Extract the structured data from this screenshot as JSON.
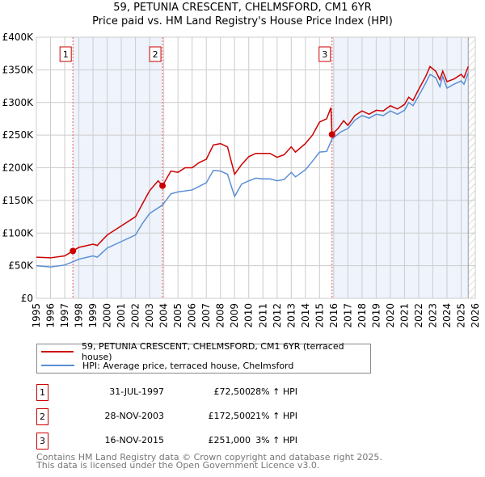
{
  "chart_data": {
    "type": "line",
    "title": "59, PETUNIA CRESCENT, CHELMSFORD, CM1 6YR",
    "subtitle": "Price paid vs. HM Land Registry's House Price Index (HPI)",
    "xlim": [
      1995,
      2026
    ],
    "ylim": [
      0,
      400000
    ],
    "yticks": [
      "£0",
      "£50K",
      "£100K",
      "£150K",
      "£200K",
      "£250K",
      "£300K",
      "£350K",
      "£400K"
    ],
    "xticks": [
      "1995",
      "1996",
      "1997",
      "1998",
      "1999",
      "2000",
      "2001",
      "2002",
      "2003",
      "2004",
      "2005",
      "2006",
      "2007",
      "2008",
      "2009",
      "2010",
      "2011",
      "2012",
      "2013",
      "2014",
      "2015",
      "2016",
      "2017",
      "2018",
      "2019",
      "2020",
      "2021",
      "2022",
      "2023",
      "2024",
      "2025",
      "2026"
    ],
    "grid": true,
    "colors": {
      "property": "#cc0000",
      "hpi": "#5b8fd4",
      "shade": "#eef3fc"
    },
    "series": [
      {
        "name": "59, PETUNIA CRESCENT, CHELMSFORD, CM1 6YR (terraced house)",
        "points": [
          [
            1995,
            63
          ],
          [
            1996,
            62
          ],
          [
            1997,
            65
          ],
          [
            1997.58,
            72.5
          ],
          [
            1998,
            78
          ],
          [
            1999,
            83
          ],
          [
            1999.3,
            81
          ],
          [
            2000,
            97
          ],
          [
            2001,
            111
          ],
          [
            2002,
            125
          ],
          [
            2002.5,
            145
          ],
          [
            2003,
            165
          ],
          [
            2003.6,
            180
          ],
          [
            2003.91,
            172.5
          ],
          [
            2004.5,
            195
          ],
          [
            2005,
            193
          ],
          [
            2005.5,
            200
          ],
          [
            2006,
            200
          ],
          [
            2006.5,
            208
          ],
          [
            2007,
            213
          ],
          [
            2007.5,
            235
          ],
          [
            2008,
            237
          ],
          [
            2008.5,
            232
          ],
          [
            2009,
            190
          ],
          [
            2009.5,
            205
          ],
          [
            2010,
            217
          ],
          [
            2010.5,
            222
          ],
          [
            2011,
            222
          ],
          [
            2011.5,
            222
          ],
          [
            2012,
            216
          ],
          [
            2012.5,
            220
          ],
          [
            2013,
            232
          ],
          [
            2013.3,
            224
          ],
          [
            2014,
            237
          ],
          [
            2014.5,
            250
          ],
          [
            2015,
            270
          ],
          [
            2015.5,
            275
          ],
          [
            2015.8,
            292
          ],
          [
            2015.88,
            251
          ],
          [
            2016.3,
            260
          ],
          [
            2016.7,
            272
          ],
          [
            2017,
            265
          ],
          [
            2017.5,
            280
          ],
          [
            2018,
            287
          ],
          [
            2018.5,
            282
          ],
          [
            2019,
            288
          ],
          [
            2019.5,
            287
          ],
          [
            2020,
            295
          ],
          [
            2020.5,
            290
          ],
          [
            2021,
            297
          ],
          [
            2021.3,
            308
          ],
          [
            2021.6,
            303
          ],
          [
            2022,
            320
          ],
          [
            2022.5,
            340
          ],
          [
            2022.8,
            355
          ],
          [
            2023.2,
            348
          ],
          [
            2023.5,
            335
          ],
          [
            2023.7,
            348
          ],
          [
            2024,
            332
          ],
          [
            2024.5,
            336
          ],
          [
            2025,
            343
          ],
          [
            2025.2,
            338
          ],
          [
            2025.5,
            355
          ]
        ]
      },
      {
        "name": "HPI: Average price, terraced house, Chelmsford",
        "points": [
          [
            1995,
            50
          ],
          [
            1996,
            48
          ],
          [
            1997,
            51
          ],
          [
            1997.58,
            56
          ],
          [
            1998,
            60
          ],
          [
            1999,
            65
          ],
          [
            1999.3,
            63
          ],
          [
            2000,
            77
          ],
          [
            2001,
            87
          ],
          [
            2002,
            97
          ],
          [
            2002.5,
            115
          ],
          [
            2003,
            130
          ],
          [
            2003.91,
            143
          ],
          [
            2004.5,
            160
          ],
          [
            2005,
            163
          ],
          [
            2006,
            166
          ],
          [
            2007,
            177
          ],
          [
            2007.5,
            196
          ],
          [
            2008,
            195
          ],
          [
            2008.5,
            190
          ],
          [
            2009,
            156
          ],
          [
            2009.5,
            175
          ],
          [
            2010,
            180
          ],
          [
            2010.5,
            184
          ],
          [
            2011,
            183
          ],
          [
            2011.5,
            183
          ],
          [
            2012,
            180
          ],
          [
            2012.5,
            182
          ],
          [
            2013,
            193
          ],
          [
            2013.3,
            186
          ],
          [
            2014,
            197
          ],
          [
            2014.5,
            210
          ],
          [
            2015,
            224
          ],
          [
            2015.5,
            225
          ],
          [
            2015.88,
            244
          ],
          [
            2016.5,
            255
          ],
          [
            2017,
            260
          ],
          [
            2017.5,
            273
          ],
          [
            2018,
            280
          ],
          [
            2018.5,
            276
          ],
          [
            2019,
            282
          ],
          [
            2019.5,
            280
          ],
          [
            2020,
            287
          ],
          [
            2020.5,
            282
          ],
          [
            2021,
            288
          ],
          [
            2021.3,
            300
          ],
          [
            2021.6,
            295
          ],
          [
            2022,
            310
          ],
          [
            2022.5,
            330
          ],
          [
            2022.8,
            343
          ],
          [
            2023.2,
            338
          ],
          [
            2023.5,
            324
          ],
          [
            2023.7,
            340
          ],
          [
            2024,
            322
          ],
          [
            2024.5,
            328
          ],
          [
            2025,
            333
          ],
          [
            2025.2,
            328
          ],
          [
            2025.5,
            345
          ]
        ]
      }
    ],
    "sales": [
      {
        "label": "1",
        "x": 1997.58,
        "y": 72.5
      },
      {
        "label": "2",
        "x": 2003.91,
        "y": 172.5
      },
      {
        "label": "3",
        "x": 2015.88,
        "y": 251
      }
    ],
    "data_end": 2025.5
  },
  "legend": {
    "property": "59, PETUNIA CRESCENT, CHELMSFORD, CM1 6YR (terraced house)",
    "hpi": "HPI: Average price, terraced house, Chelmsford"
  },
  "transactions": [
    {
      "num": "1",
      "date": "31-JUL-1997",
      "price": "£72,500",
      "hpi": "28% ↑ HPI"
    },
    {
      "num": "2",
      "date": "28-NOV-2003",
      "price": "£172,500",
      "hpi": "21% ↑ HPI"
    },
    {
      "num": "3",
      "date": "16-NOV-2015",
      "price": "£251,000",
      "hpi": "3% ↑ HPI"
    }
  ],
  "footer": [
    "Contains HM Land Registry data © Crown copyright and database right 2025.",
    "This data is licensed under the Open Government Licence v3.0."
  ]
}
